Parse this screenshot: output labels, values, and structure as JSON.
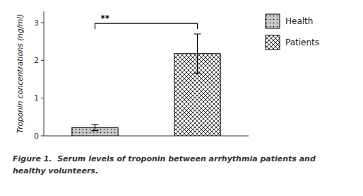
{
  "chart_data": {
    "type": "bar",
    "categories": [
      "Health",
      "Patients"
    ],
    "values": [
      0.22,
      2.18
    ],
    "errors": [
      0.08,
      0.52
    ],
    "colors": [
      "#c8c8c8",
      "#ffffff"
    ],
    "ylim": [
      0,
      3.3
    ],
    "yticks": [
      0,
      1,
      2,
      3
    ],
    "ylabel": "Troponin concentrations (ng/ml)",
    "grid": false,
    "legend": "right",
    "tick_labels": "y",
    "annotations": [
      {
        "text": "**",
        "y": 2.98
      }
    ],
    "caption": [
      "Figure 1.  Serum levels of troponin between arrhythmia patients and",
      "healthy volunteers."
    ]
  }
}
